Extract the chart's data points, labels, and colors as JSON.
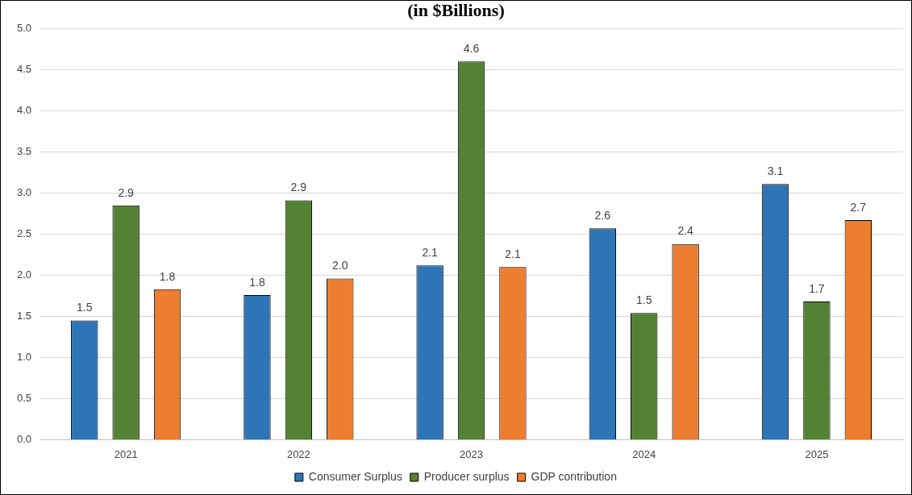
{
  "chart_data": {
    "type": "bar",
    "title": "(in $Billions)",
    "categories": [
      "2021",
      "2022",
      "2023",
      "2024",
      "2025"
    ],
    "series": [
      {
        "name": "Consumer Surplus",
        "color": "#2e75b6",
        "values": [
          1.45,
          1.76,
          2.12,
          2.57,
          3.11
        ],
        "value_labels": [
          "1.5",
          "1.8",
          "2.1",
          "2.6",
          "3.1"
        ]
      },
      {
        "name": "Producer surplus",
        "color": "#548235",
        "values": [
          2.85,
          2.91,
          4.6,
          1.54,
          1.68
        ],
        "value_labels": [
          "2.9",
          "2.9",
          "4.6",
          "1.5",
          "1.7"
        ]
      },
      {
        "name": "GDP contribution",
        "color": "#ed7d31",
        "values": [
          1.83,
          1.96,
          2.1,
          2.38,
          2.67
        ],
        "value_labels": [
          "1.8",
          "2.0",
          "2.1",
          "2.4",
          "2.7"
        ]
      }
    ],
    "ylim": [
      0,
      5
    ],
    "yticks": [
      {
        "value": 0,
        "label": "0.0"
      },
      0.5,
      {
        "value": 1,
        "label": "1.0"
      },
      1.5,
      {
        "value": 2,
        "label": "2.0"
      },
      2.5,
      {
        "value": 3,
        "label": "3.0"
      },
      3.5,
      {
        "value": 4,
        "label": "4.0"
      },
      4.5,
      {
        "value": 5,
        "label": "5.0"
      }
    ],
    "grid": "y",
    "legend": "bottom"
  }
}
